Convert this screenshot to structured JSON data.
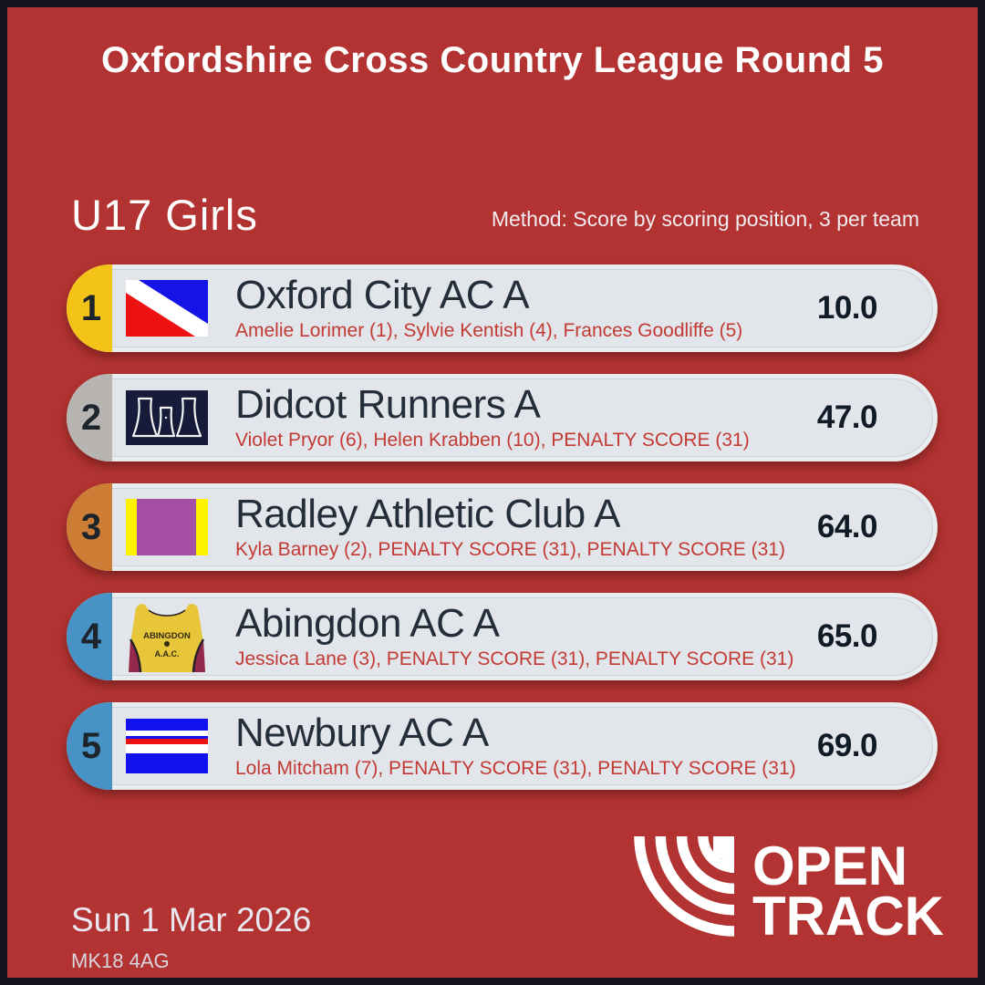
{
  "brand_colors": {
    "background": "#b23331",
    "frame": "#14141f",
    "pill_outer": "#e9edf0",
    "pill_inner": "#e2e6ea",
    "athlete_red": "#c33a35",
    "ink": "#242e3a"
  },
  "header": {
    "title": "Oxfordshire Cross Country League Round 5"
  },
  "section": {
    "heading": "U17 Girls",
    "method": "Method: Score by scoring position, 3 per team"
  },
  "results": [
    {
      "rank": "1",
      "badge_color": "#f3c318",
      "team": "Oxford City AC A",
      "athletes": "Amelie Lorimer (1), Sylvie Kentish (4), Frances Goodliffe (5)",
      "score": "10.0",
      "logo": "oxford-city-flag"
    },
    {
      "rank": "2",
      "badge_color": "#b7b4b1",
      "team": "Didcot Runners A",
      "athletes": "Violet Pryor (6), Helen Krabben (10), PENALTY SCORE (31)",
      "score": "47.0",
      "logo": "didcot-cooling-towers"
    },
    {
      "rank": "3",
      "badge_color": "#cd7d35",
      "team": "Radley Athletic Club A",
      "athletes": "Kyla Barney (2), PENALTY SCORE (31), PENALTY SCORE (31)",
      "score": "64.0",
      "logo": "radley-bands"
    },
    {
      "rank": "4",
      "badge_color": "#4793c6",
      "team": "Abingdon AC A",
      "athletes": "Jessica Lane (3), PENALTY SCORE (31), PENALTY SCORE (31)",
      "score": "65.0",
      "logo": "abingdon-vest"
    },
    {
      "rank": "5",
      "badge_color": "#4793c6",
      "team": "Newbury AC A",
      "athletes": "Lola Mitcham (7), PENALTY SCORE (31), PENALTY SCORE (31)",
      "score": "69.0",
      "logo": "newbury-stripes"
    }
  ],
  "footer": {
    "date": "Sun 1 Mar 2026",
    "venue_postcode": "MK18 4AG",
    "brand_word1": "OPEN",
    "brand_word2": "TRACK"
  },
  "logo_colors": {
    "oxford": {
      "blue": "#1414e6",
      "red": "#ee1111",
      "white": "#ffffff"
    },
    "didcot": {
      "navy": "#151b38",
      "white": "#f2f2f2"
    },
    "radley": {
      "yellow": "#fdf200",
      "purple": "#a44fa4"
    },
    "abingdon": {
      "yellow": "#e8c63a",
      "maroon": "#95294b",
      "dark": "#332b12",
      "trim": "#26202a"
    },
    "newbury": {
      "blue": "#1212ee",
      "red": "#ee1111",
      "white": "#ffffff"
    }
  }
}
